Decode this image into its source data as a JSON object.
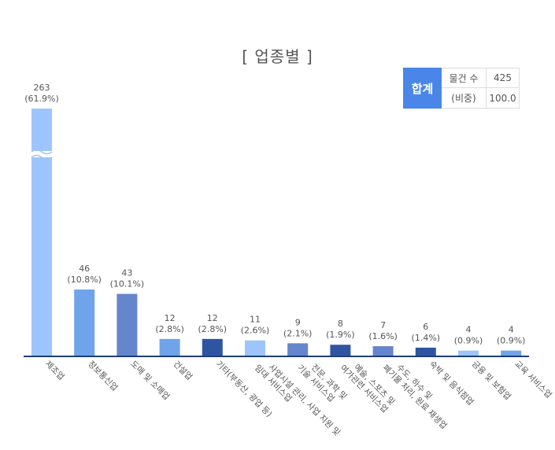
{
  "title": "[ 업종별 ]",
  "summary": {
    "header": "합계",
    "rows": [
      {
        "label": "물건 수",
        "value": "425"
      },
      {
        "label": "(비중)",
        "value": "100.0"
      }
    ]
  },
  "chart_data": {
    "type": "bar",
    "title": "[ 업종별 ]",
    "xlabel": "",
    "ylabel": "",
    "y_axis_broken": true,
    "categories": [
      [
        "제조업"
      ],
      [
        "정보통신업"
      ],
      [
        "도매 및 소매업"
      ],
      [
        "건설업"
      ],
      [
        "기타(부동산, 광업 등)"
      ],
      [
        "사업시설 관리, 사업 지원 및",
        "임대 서비스업"
      ],
      [
        "전문, 과학 및",
        "기술 서비스업"
      ],
      [
        "예술, 스포츠 및",
        "여가관련 서비스업"
      ],
      [
        "수도, 하수 및",
        "폐기물 처리, 원료 재생업"
      ],
      [
        "숙박 및 음식점업"
      ],
      [
        "금융 및 보험업"
      ],
      [
        "교육 서비스업"
      ]
    ],
    "values": [
      263,
      46,
      43,
      12,
      12,
      11,
      9,
      8,
      7,
      6,
      4,
      4
    ],
    "shares": [
      "(61.9%)",
      "(10.8%)",
      "(10.1%)",
      "(2.8%)",
      "(2.8%)",
      "(2.6%)",
      "(2.1%)",
      "(1.9%)",
      "(1.6%)",
      "(1.4%)",
      "(0.9%)",
      "(0.9%)"
    ],
    "colors": [
      "#9ec5fb",
      "#6fa4ea",
      "#6585cc",
      "#6fa4ea",
      "#2f55a2",
      "#9ec5fb",
      "#6585cc",
      "#2f55a2",
      "#6585cc",
      "#2f55a2",
      "#9ec5fb",
      "#6fa4ea"
    ]
  }
}
